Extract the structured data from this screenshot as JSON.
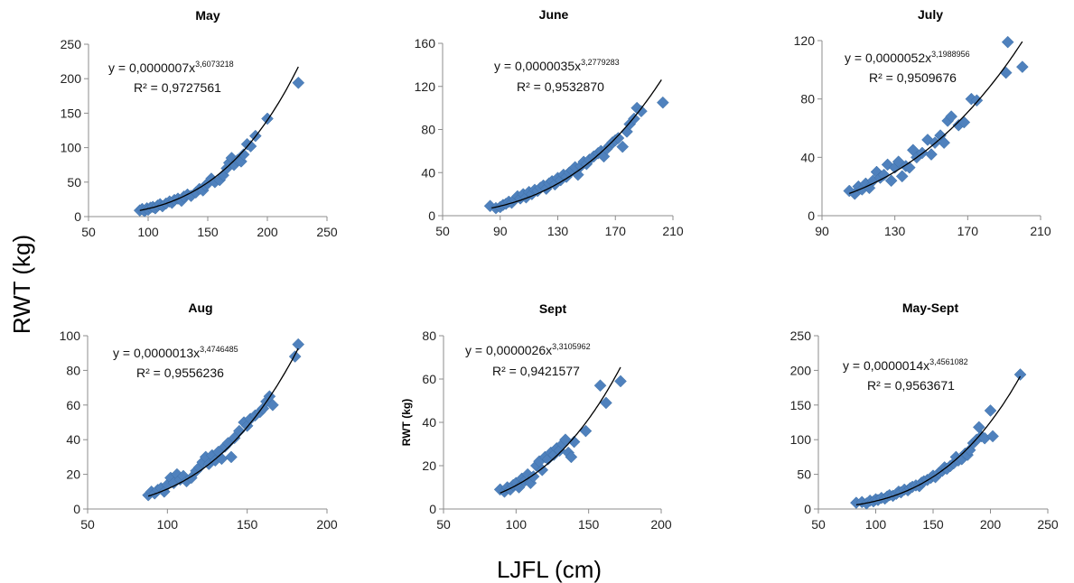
{
  "figure": {
    "ylabel": "RWT (kg)",
    "xlabel": "LJFL (cm)"
  },
  "chart_data": [
    {
      "type": "scatter",
      "title": "May",
      "xlim": [
        50,
        250
      ],
      "xticks": [
        50,
        100,
        150,
        200,
        250
      ],
      "ylim": [
        0,
        250
      ],
      "yticks": [
        0,
        50,
        100,
        150,
        200,
        250
      ],
      "ylabel": "",
      "equation_text": "y = 0,0000007x",
      "equation_exp": "3,6073218",
      "r2_text": "R² = 0,9727561",
      "fit": {
        "a": 7e-07,
        "b": 3.6073218,
        "x_range": [
          93,
          226
        ]
      },
      "x": [
        93,
        95,
        97,
        99,
        100,
        102,
        104,
        106,
        108,
        110,
        112,
        115,
        118,
        120,
        122,
        125,
        128,
        130,
        133,
        136,
        140,
        143,
        146,
        148,
        150,
        153,
        156,
        160,
        163,
        166,
        168,
        170,
        172,
        175,
        178,
        180,
        183,
        186,
        190,
        200,
        226
      ],
      "y": [
        9,
        11,
        8,
        12,
        10,
        13,
        14,
        12,
        16,
        18,
        15,
        19,
        22,
        20,
        24,
        26,
        23,
        29,
        32,
        30,
        35,
        40,
        38,
        45,
        48,
        55,
        50,
        53,
        60,
        70,
        78,
        85,
        75,
        82,
        80,
        90,
        105,
        102,
        117,
        142,
        194
      ]
    },
    {
      "type": "scatter",
      "title": "June",
      "xlim": [
        50,
        210
      ],
      "xticks": [
        50,
        90,
        130,
        170,
        210
      ],
      "ylim": [
        0,
        160
      ],
      "yticks": [
        0,
        40,
        80,
        120,
        160
      ],
      "ylabel": "",
      "equation_text": "y = 0,0000035x",
      "equation_exp": "3,2779283",
      "r2_text": "R² = 0,9532870",
      "fit": {
        "a": 3.5e-06,
        "b": 3.2779283,
        "x_range": [
          84,
          202
        ]
      },
      "x": [
        83,
        87,
        90,
        92,
        94,
        96,
        98,
        100,
        102,
        104,
        106,
        108,
        110,
        112,
        114,
        116,
        118,
        120,
        122,
        124,
        126,
        128,
        130,
        132,
        134,
        136,
        138,
        140,
        142,
        144,
        146,
        148,
        150,
        152,
        155,
        158,
        160,
        162,
        164,
        166,
        168,
        170,
        172,
        175,
        178,
        180,
        183,
        185,
        188,
        203
      ],
      "y": [
        9,
        7,
        8,
        10,
        11,
        13,
        12,
        15,
        18,
        16,
        20,
        17,
        22,
        20,
        24,
        23,
        26,
        28,
        25,
        30,
        32,
        29,
        35,
        33,
        38,
        36,
        40,
        42,
        45,
        38,
        46,
        50,
        48,
        52,
        55,
        58,
        60,
        55,
        62,
        65,
        68,
        70,
        72,
        64,
        78,
        85,
        90,
        100,
        97,
        105
      ]
    },
    {
      "type": "scatter",
      "title": "July",
      "xlim": [
        90,
        210
      ],
      "xticks": [
        90,
        130,
        170,
        210
      ],
      "ylim": [
        0,
        120
      ],
      "yticks": [
        0,
        40,
        80,
        120
      ],
      "ylabel": "",
      "equation_text": "y = 0,0000052x",
      "equation_exp": "3,1988956",
      "r2_text": "R² = 0,9509676",
      "fit": {
        "a": 5.2e-06,
        "b": 3.1988956,
        "x_range": [
          105,
          200
        ]
      },
      "x": [
        105,
        108,
        110,
        112,
        114,
        116,
        118,
        120,
        122,
        124,
        126,
        128,
        130,
        132,
        134,
        136,
        138,
        140,
        142,
        145,
        148,
        150,
        152,
        155,
        157,
        159,
        161,
        165,
        168,
        172,
        175,
        191,
        192,
        200
      ],
      "y": [
        17,
        15,
        20,
        18,
        22,
        19,
        24,
        30,
        26,
        28,
        35,
        24,
        33,
        37,
        27,
        34,
        33,
        45,
        40,
        43,
        52,
        42,
        50,
        55,
        50,
        65,
        68,
        62,
        64,
        80,
        79,
        98,
        119,
        102
      ]
    },
    {
      "type": "scatter",
      "title": "Aug",
      "xlim": [
        50,
        200
      ],
      "xticks": [
        50,
        100,
        150,
        200
      ],
      "ylim": [
        0,
        100
      ],
      "yticks": [
        0,
        20,
        40,
        60,
        80,
        100
      ],
      "ylabel": "",
      "equation_text": "y = 0,0000013x",
      "equation_exp": "3,4746485",
      "r2_text": "R² = 0,9556236",
      "fit": {
        "a": 1.3e-06,
        "b": 3.4746485,
        "x_range": [
          88,
          182
        ]
      },
      "x": [
        88,
        90,
        92,
        94,
        96,
        98,
        100,
        102,
        104,
        106,
        108,
        110,
        112,
        115,
        118,
        120,
        122,
        124,
        126,
        128,
        130,
        132,
        134,
        136,
        138,
        140,
        142,
        145,
        148,
        150,
        152,
        155,
        158,
        160,
        162,
        164,
        166,
        180,
        182
      ],
      "y": [
        8,
        10,
        9,
        11,
        12,
        10,
        14,
        18,
        15,
        20,
        17,
        19,
        16,
        18,
        22,
        24,
        27,
        30,
        26,
        31,
        28,
        33,
        29,
        36,
        38,
        30,
        41,
        45,
        50,
        48,
        52,
        54,
        56,
        58,
        62,
        65,
        60,
        88,
        95
      ]
    },
    {
      "type": "scatter",
      "title": "Sept",
      "xlim": [
        50,
        200
      ],
      "xticks": [
        50,
        100,
        150,
        200
      ],
      "ylim": [
        0,
        80
      ],
      "yticks": [
        0,
        20,
        40,
        60,
        80
      ],
      "ylabel": "RWT (kg)",
      "equation_text": "y = 0,0000026x",
      "equation_exp": "3,3105962",
      "r2_text": "R² = 0,9421577",
      "fit": {
        "a": 2.6e-06,
        "b": 3.3105962,
        "x_range": [
          89,
          172
        ]
      },
      "x": [
        89,
        92,
        94,
        96,
        98,
        100,
        102,
        104,
        106,
        108,
        110,
        112,
        114,
        116,
        118,
        120,
        122,
        124,
        126,
        128,
        130,
        132,
        134,
        136,
        138,
        140,
        148,
        158,
        162,
        172
      ],
      "y": [
        9,
        8,
        10,
        9,
        11,
        12,
        10,
        14,
        13,
        16,
        12,
        15,
        20,
        22,
        18,
        24,
        23,
        26,
        25,
        28,
        27,
        30,
        32,
        26,
        24,
        31,
        36,
        57,
        49,
        59
      ]
    },
    {
      "type": "scatter",
      "title": "May-Sept",
      "xlim": [
        50,
        250
      ],
      "xticks": [
        50,
        100,
        150,
        200,
        250
      ],
      "ylim": [
        0,
        250
      ],
      "yticks": [
        0,
        50,
        100,
        150,
        200,
        250
      ],
      "ylabel": "",
      "equation_text": "y = 0,0000014x",
      "equation_exp": "3,4561082",
      "r2_text": "R² = 0,9563671",
      "fit": {
        "a": 1.4e-06,
        "b": 3.4561082,
        "x_range": [
          83,
          226
        ]
      },
      "x": [
        83,
        88,
        92,
        95,
        98,
        100,
        102,
        105,
        108,
        110,
        112,
        115,
        118,
        120,
        122,
        125,
        128,
        130,
        132,
        135,
        138,
        140,
        142,
        145,
        148,
        150,
        152,
        155,
        158,
        160,
        162,
        165,
        168,
        170,
        172,
        175,
        178,
        180,
        182,
        185,
        188,
        190,
        192,
        195,
        200,
        202,
        226
      ],
      "y": [
        9,
        10,
        8,
        12,
        11,
        14,
        13,
        16,
        15,
        18,
        20,
        19,
        22,
        25,
        24,
        28,
        27,
        30,
        32,
        34,
        33,
        38,
        40,
        42,
        45,
        48,
        46,
        52,
        55,
        60,
        58,
        62,
        66,
        75,
        70,
        72,
        80,
        78,
        85,
        95,
        100,
        118,
        105,
        102,
        142,
        105,
        194
      ]
    }
  ]
}
